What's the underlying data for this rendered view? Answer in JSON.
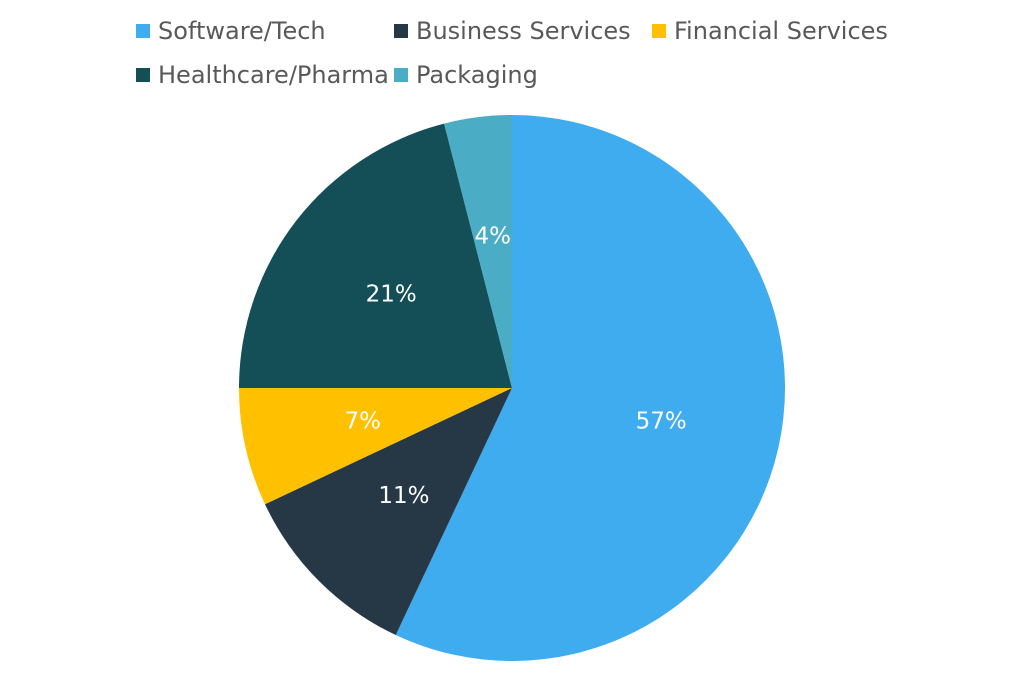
{
  "chart_data": {
    "type": "pie",
    "start_angle_deg": 0,
    "direction": "clockwise",
    "legend_position": "top",
    "slices": [
      {
        "name": "Software/Tech",
        "value": 57,
        "label": "57%",
        "color": "#3EACEE"
      },
      {
        "name": "Business Services",
        "value": 11,
        "label": "11%",
        "color": "#263746"
      },
      {
        "name": "Financial Services",
        "value": 7,
        "label": "7%",
        "color": "#FFC000"
      },
      {
        "name": "Healthcare/Pharma",
        "value": 21,
        "label": "21%",
        "color": "#144F57"
      },
      {
        "name": "Packaging",
        "value": 4,
        "label": "4%",
        "color": "#4BACC6"
      }
    ]
  }
}
